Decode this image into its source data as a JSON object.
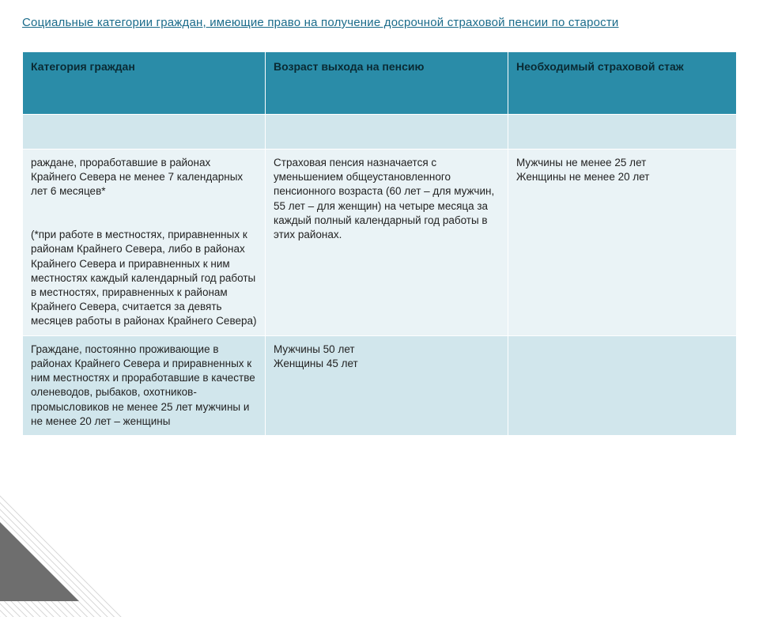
{
  "title": "Социальные категории граждан, имеющие право на получение досрочной страховой пенсии по старости",
  "table": {
    "columns": [
      "Категория граждан",
      "Возраст выхода на пенсию",
      "Необходимый страховой стаж"
    ],
    "header_bg": "#2a8ca8",
    "row_alt_bg_a": "#eaf3f6",
    "row_alt_bg_b": "#d1e6ec",
    "rows": [
      {
        "cells": [
          "раждане, проработавшие в районах Крайнего Севера не менее 7 календарных лет 6 месяцев*\n\n(*при работе в местностях, приравненных к районам Крайнего Севера, либо в районах Крайнего Севера и приравненных к ним местностях каждый календарный год работы в местностях, приравненных к районам Крайнего Севера, считается за девять месяцев работы в районах Крайнего Севера)",
          "Страховая пенсия назначается с уменьшением общеустановленного пенсионного возраста (60 лет – для мужчин, 55 лет – для женщин) на четыре месяца за каждый полный календарный год работы в этих районах.",
          "Мужчины не менее 25 лет\nЖенщины не менее 20 лет"
        ]
      },
      {
        "cells": [
          "Граждане, постоянно проживающие в районах Крайнего Севера и приравненных к ним местностях и проработавшие в качестве оленеводов, рыбаков, охотников-промысловиков не менее 25 лет мужчины и не менее 20 лет – женщины",
          "Мужчины 50 лет\nЖенщины 45 лет",
          ""
        ]
      }
    ]
  }
}
